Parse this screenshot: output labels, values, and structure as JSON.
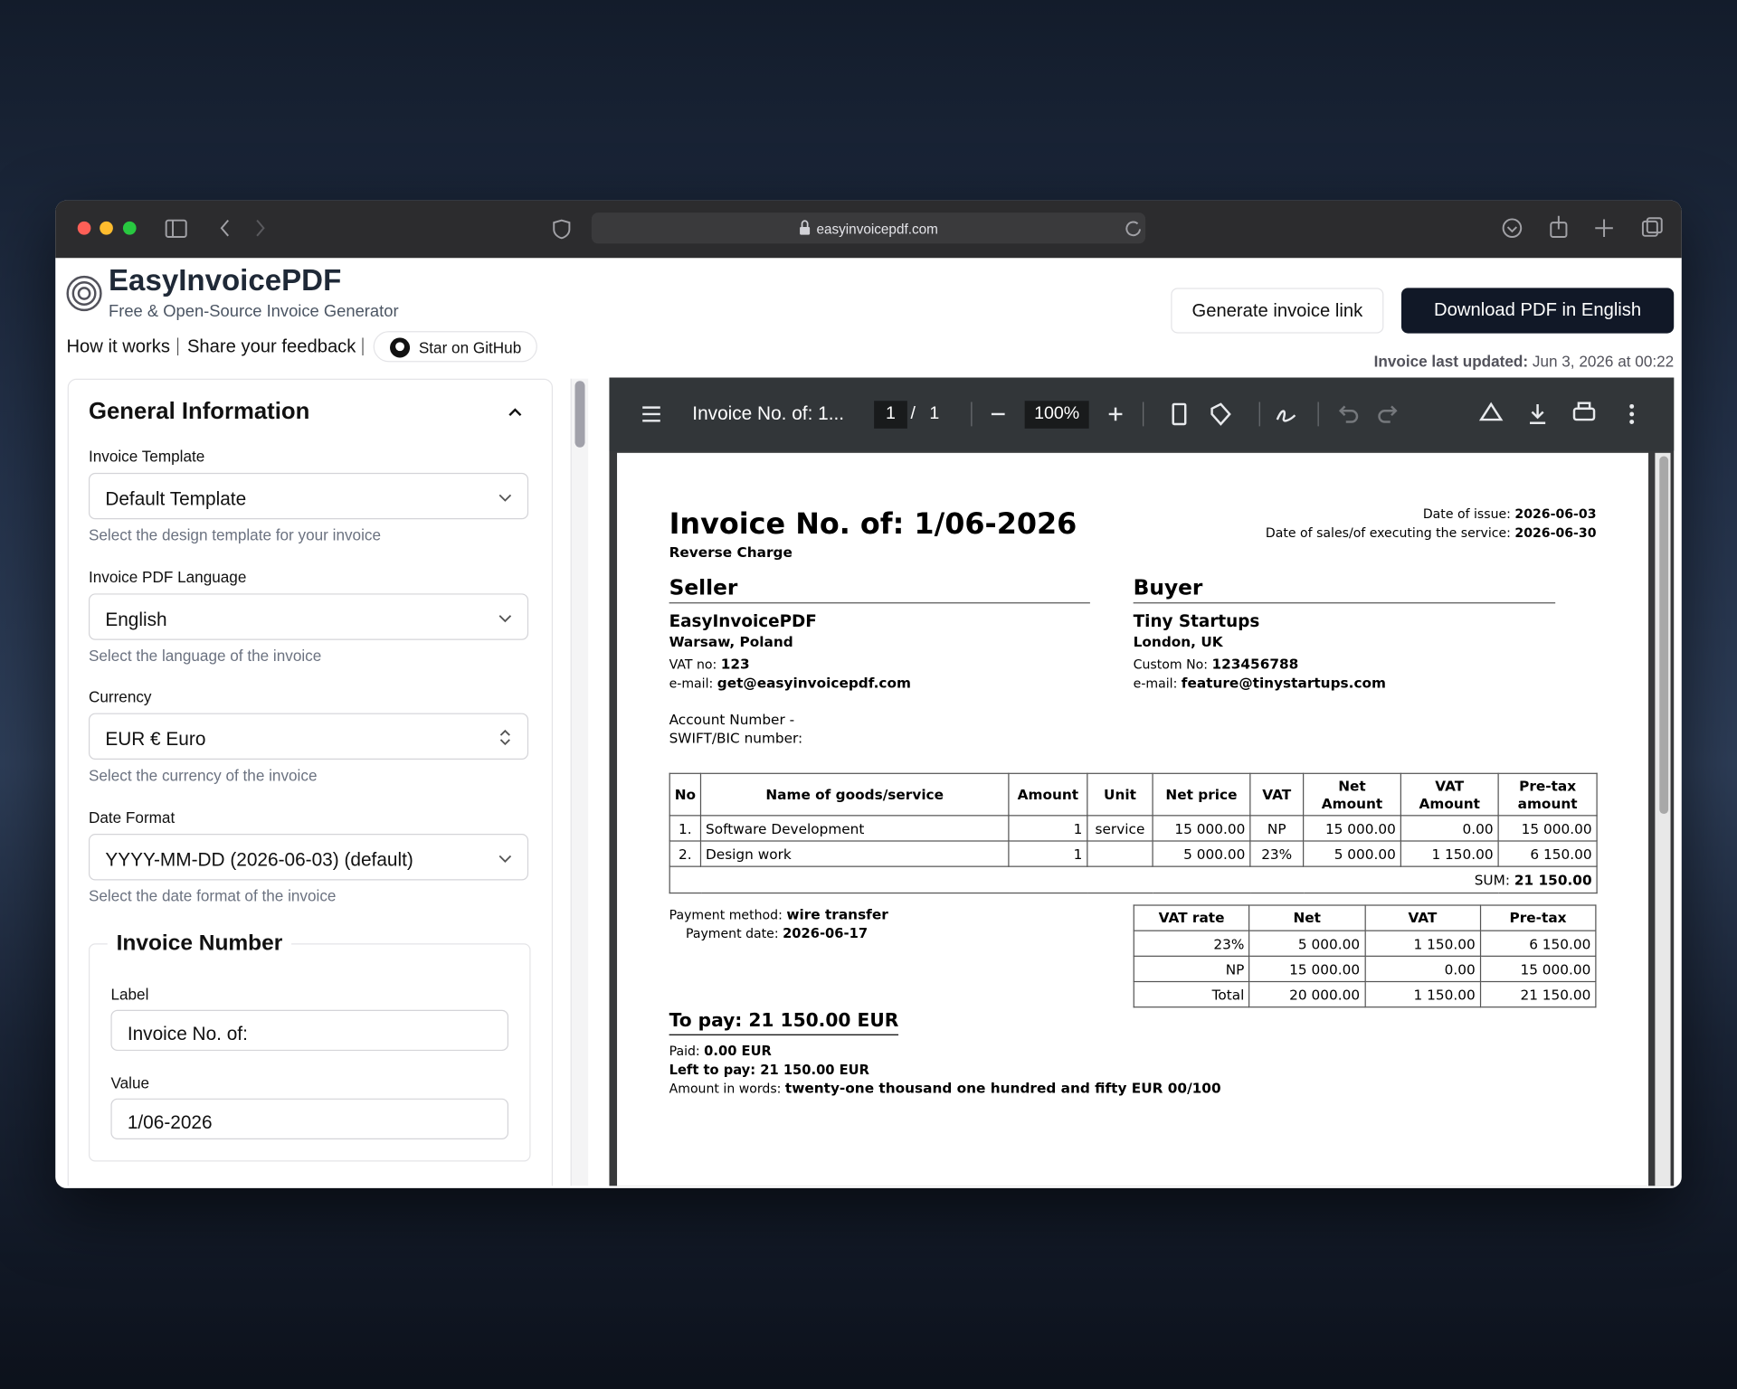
{
  "browser": {
    "url": "easyinvoicepdf.com"
  },
  "header": {
    "title": "EasyInvoicePDF",
    "subtitle": "Free & Open-Source Invoice Generator",
    "links": [
      "How it works",
      "Share your feedback"
    ],
    "github": "Star on GitHub",
    "buttons": [
      "Generate invoice link",
      "Download PDF in English"
    ],
    "last_updated_label": "Invoice last updated:",
    "last_updated": "Jun 3, 2026 at 00:22"
  },
  "form": {
    "section": "General Information",
    "fields": [
      {
        "label": "Invoice Template",
        "value": "Default Template",
        "help": "Select the design template for your invoice"
      },
      {
        "label": "Invoice PDF Language",
        "value": "English",
        "help": "Select the language of the invoice"
      },
      {
        "label": "Currency",
        "value": "EUR € Euro",
        "help": "Select the currency of the invoice"
      },
      {
        "label": "Date Format",
        "value": "YYYY-MM-DD (2026-06-03) (default)",
        "help": "Select the date format of the invoice"
      }
    ],
    "invoice_number": {
      "title": "Invoice Number",
      "fields": [
        {
          "label": "Label",
          "value": "Invoice No. of:"
        },
        {
          "label": "Value",
          "value": "1/06-2026"
        }
      ]
    }
  },
  "viewer": {
    "title": "Invoice No. of: 1...",
    "page": "1",
    "separator": "/",
    "pages": "1",
    "zoom": "100%"
  },
  "invoice": {
    "title": "Invoice No. of: 1/06-2026",
    "note": "Reverse Charge",
    "dates": [
      {
        "label": "Date of issue:",
        "value": "2026-06-03"
      },
      {
        "label": "Date of sales/of executing the service:",
        "value": "2026-06-30"
      }
    ],
    "seller": {
      "heading": "Seller",
      "name": "EasyInvoicePDF",
      "address": "Warsaw, Poland",
      "details": [
        {
          "label": "VAT no:",
          "value": "123"
        },
        {
          "label": "e-mail:",
          "value": "get@easyinvoicepdf.com"
        }
      ],
      "account": [
        "Account Number -",
        "SWIFT/BIC number:"
      ]
    },
    "buyer": {
      "heading": "Buyer",
      "name": "Tiny Startups",
      "address": "London, UK",
      "details": [
        {
          "label": "Custom No:",
          "value": "123456788"
        },
        {
          "label": "e-mail:",
          "value": "feature@tinystartups.com"
        }
      ]
    },
    "items": {
      "header": [
        "No",
        "Name of goods/service",
        "Amount",
        "Unit",
        "Net price",
        "VAT",
        "Net Amount",
        "VAT Amount",
        "Pre-tax amount"
      ],
      "rows": [
        [
          "1.",
          "Software Development",
          "1",
          "service",
          "15 000.00",
          "NP",
          "15 000.00",
          "0.00",
          "15 000.00"
        ],
        [
          "2.",
          "Design work",
          "1",
          null,
          "5 000.00",
          "23%",
          "5 000.00",
          "1 150.00",
          "6 150.00"
        ]
      ],
      "sum_label": "SUM:",
      "sum": "21 150.00"
    },
    "payment": [
      {
        "label": "Payment method:",
        "value": "wire transfer"
      },
      {
        "label": "Payment date:",
        "value": "2026-06-17"
      }
    ],
    "vat_summary": {
      "header": [
        "VAT rate",
        "Net",
        "VAT",
        "Pre-tax"
      ],
      "rows": [
        [
          "23%",
          "5 000.00",
          "1 150.00",
          "6 150.00"
        ],
        [
          "NP",
          "15 000.00",
          "0.00",
          "15 000.00"
        ],
        [
          "Total",
          "20 000.00",
          "1 150.00",
          "21 150.00"
        ]
      ]
    },
    "to_pay": "To pay: 21 150.00 EUR",
    "totals": [
      {
        "label": "Paid:",
        "value": "0.00 EUR"
      },
      {
        "label": "Left to pay:",
        "value": "21 150.00 EUR"
      },
      {
        "label": "Amount in words:",
        "value": "twenty-one thousand one hundred and fifty EUR 00/100"
      }
    ]
  }
}
